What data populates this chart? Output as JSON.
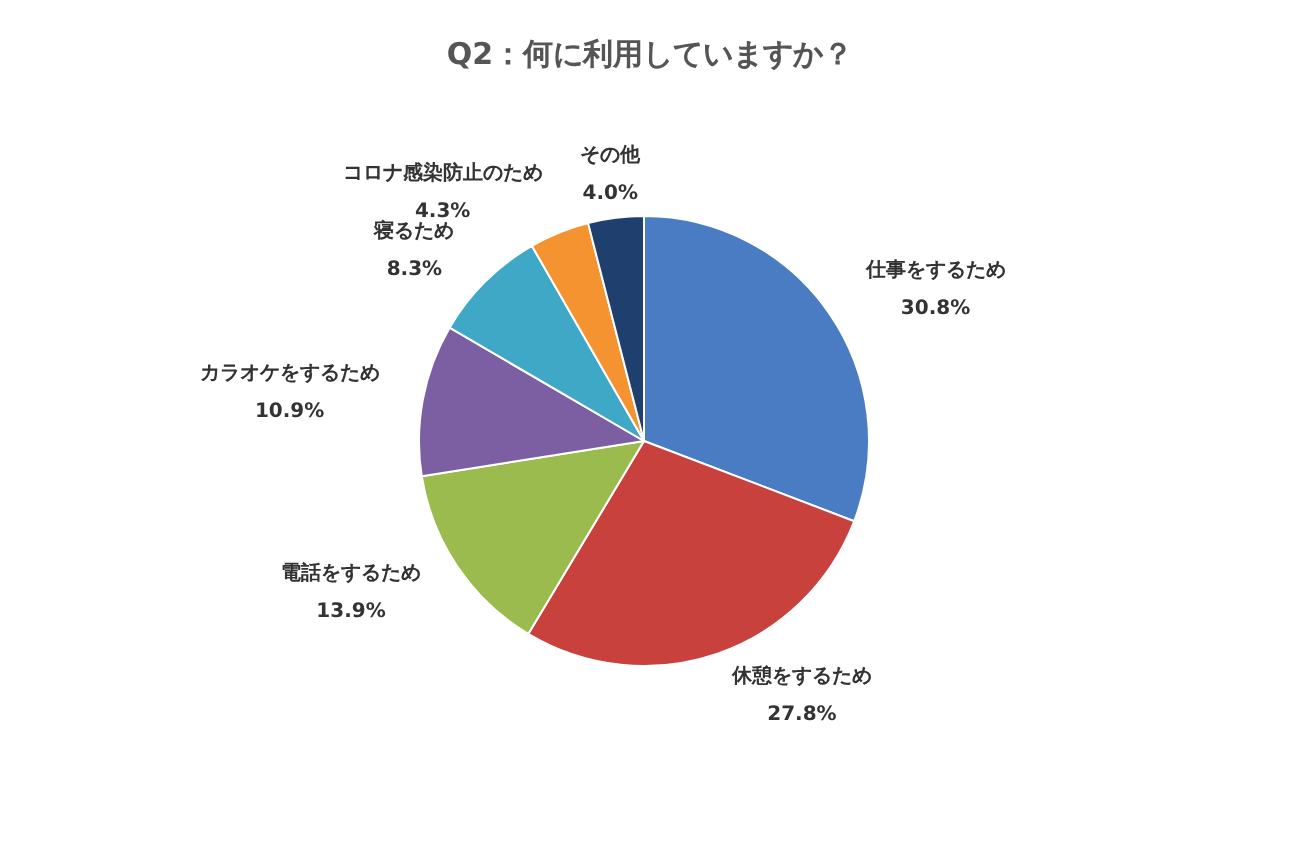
{
  "chart_data": {
    "type": "pie",
    "title": "Q2：何に利用していますか？",
    "categories": [
      "仕事をするため",
      "休憩をするため",
      "電話をするため",
      "カラオケをするため",
      "寝るため",
      "コロナ感染防止のため",
      "その他"
    ],
    "values": [
      30.8,
      27.8,
      13.9,
      10.9,
      8.3,
      4.3,
      4.0
    ],
    "value_labels": [
      "30.8%",
      "27.8%",
      "13.9%",
      "10.9%",
      "8.3%",
      "4.3%",
      "4.0%"
    ],
    "colors": [
      "#4a7cc4",
      "#c9413d",
      "#9bbb4f",
      "#7c5ea3",
      "#3fa8c6",
      "#f59331",
      "#1f3f6e"
    ],
    "legend": false
  }
}
